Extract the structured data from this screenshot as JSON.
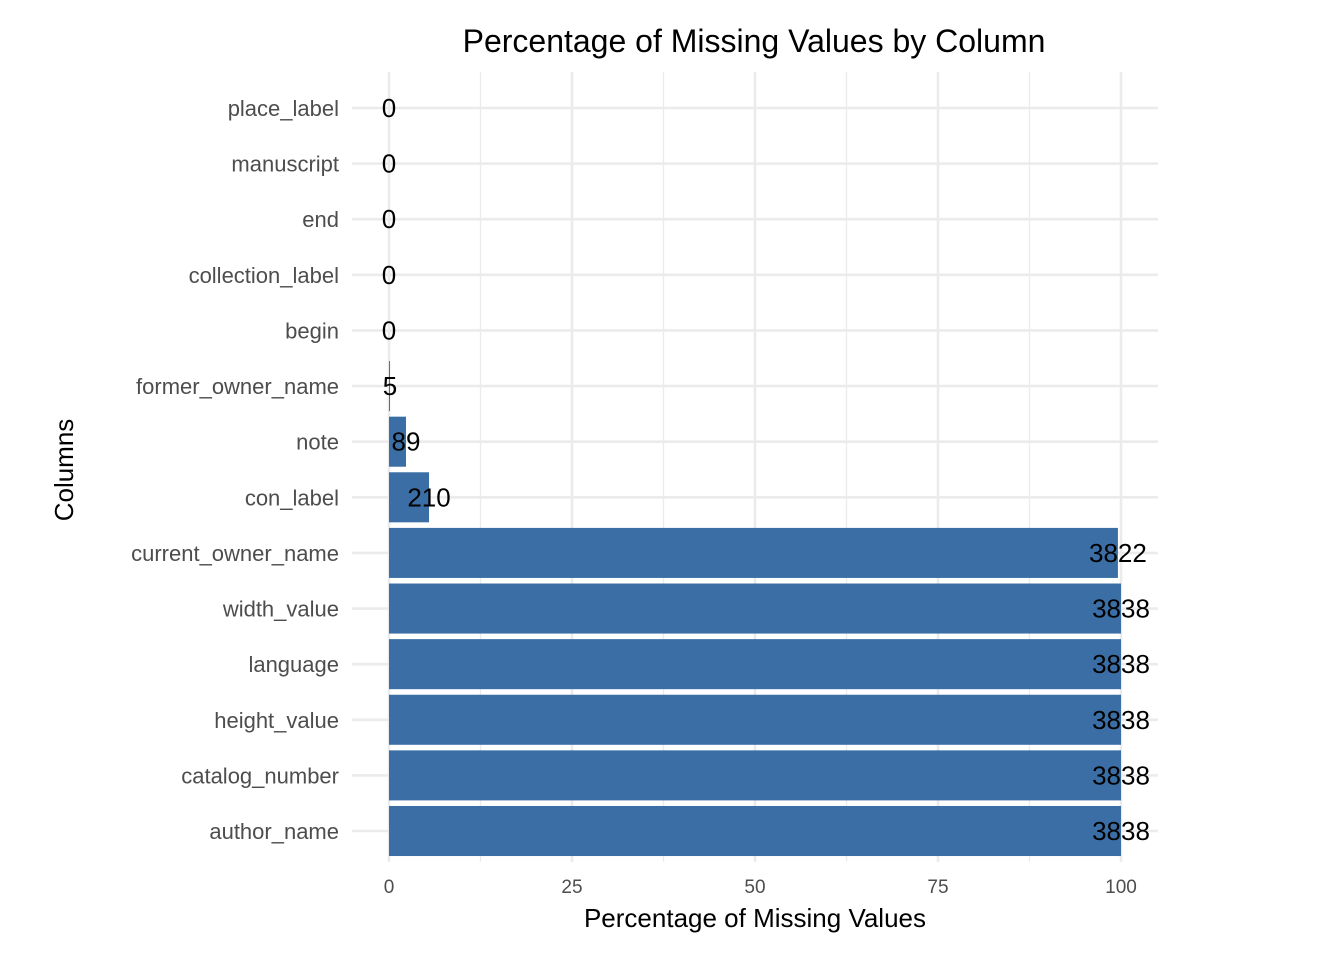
{
  "chart_data": {
    "type": "bar",
    "orientation": "horizontal",
    "title": "Percentage of Missing Values by Column",
    "xlabel": "Percentage of Missing Values",
    "ylabel": "Columns",
    "xlim": [
      0,
      100
    ],
    "x_ticks": [
      0,
      25,
      50,
      75,
      100
    ],
    "grid": true,
    "bar_color": "#3A6EA5",
    "categories": [
      "place_label",
      "manuscript",
      "end",
      "collection_label",
      "begin",
      "former_owner_name",
      "note",
      "con_label",
      "current_owner_name",
      "width_value",
      "language",
      "height_value",
      "catalog_number",
      "author_name"
    ],
    "values": [
      0,
      0,
      0,
      0,
      0,
      0.13,
      2.32,
      5.47,
      99.58,
      100,
      100,
      100,
      100,
      100
    ],
    "labels": [
      "0",
      "0",
      "0",
      "0",
      "0",
      "5",
      "89",
      "210",
      "3822",
      "3838",
      "3838",
      "3838",
      "3838",
      "3838"
    ]
  }
}
